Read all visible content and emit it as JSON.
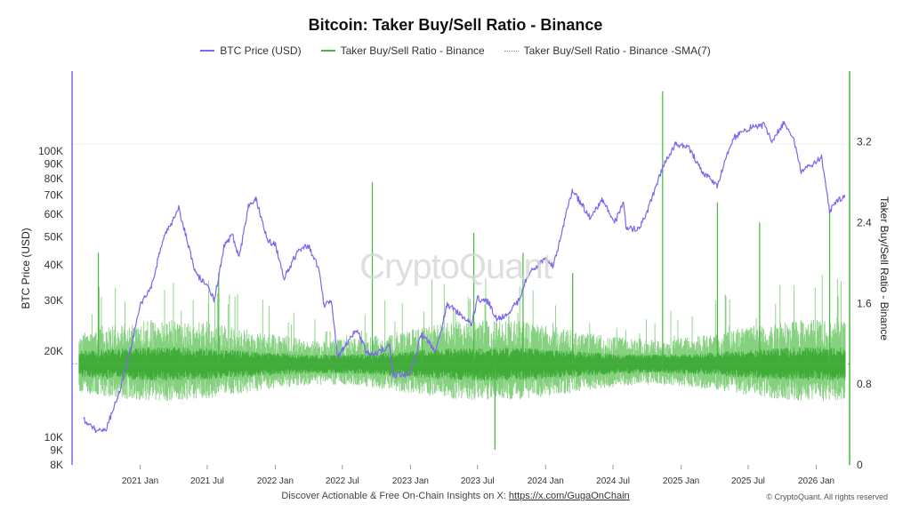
{
  "chart_data": {
    "type": "line",
    "title": "Bitcoin: Taker Buy/Sell Ratio - Binance",
    "ylabel_left": "BTC Price (USD)",
    "ylabel_right": "Taker Buy/Sell Ratio - Binance",
    "x_ticks": [
      "2021 Jan",
      "2021 Jul",
      "2022 Jan",
      "2022 Jul",
      "2023 Jan",
      "2023 Jul",
      "2024 Jan",
      "2024 Jul",
      "2025 Jan",
      "2025 Jul",
      "2026 Jan"
    ],
    "x_range": [
      "2020-07-01",
      "2026-04-01"
    ],
    "y_left": {
      "scale": "log",
      "range": [
        8000,
        190000
      ],
      "ticks": [
        "8K",
        "9K",
        "10K",
        "20K",
        "30K",
        "40K",
        "50K",
        "60K",
        "70K",
        "80K",
        "90K",
        "100K"
      ]
    },
    "y_right": {
      "scale": "linear",
      "range": [
        0,
        3.9
      ],
      "ticks": [
        "0",
        "0.8",
        "1.6",
        "2.4",
        "3.2"
      ]
    },
    "reference_line": 1.0,
    "series": [
      {
        "name": "BTC Price (USD)",
        "color": "#7b68ee",
        "axis": "left",
        "points": [
          [
            "2020-08-01",
            11500
          ],
          [
            "2020-09-01",
            10600
          ],
          [
            "2020-10-01",
            10700
          ],
          [
            "2020-11-01",
            13700
          ],
          [
            "2020-12-01",
            19000
          ],
          [
            "2021-01-01",
            29000
          ],
          [
            "2021-02-01",
            33500
          ],
          [
            "2021-03-01",
            48000
          ],
          [
            "2021-04-01",
            58000
          ],
          [
            "2021-04-15",
            63000
          ],
          [
            "2021-05-15",
            45000
          ],
          [
            "2021-06-01",
            37000
          ],
          [
            "2021-07-01",
            34000
          ],
          [
            "2021-07-20",
            30000
          ],
          [
            "2021-08-15",
            46000
          ],
          [
            "2021-09-07",
            51000
          ],
          [
            "2021-09-25",
            42000
          ],
          [
            "2021-10-20",
            64000
          ],
          [
            "2021-11-10",
            67500
          ],
          [
            "2021-12-10",
            49000
          ],
          [
            "2022-01-01",
            47000
          ],
          [
            "2022-01-25",
            36000
          ],
          [
            "2022-03-01",
            44000
          ],
          [
            "2022-03-30",
            47000
          ],
          [
            "2022-05-01",
            38000
          ],
          [
            "2022-05-12",
            29000
          ],
          [
            "2022-06-01",
            30000
          ],
          [
            "2022-06-18",
            19000
          ],
          [
            "2022-07-01",
            20000
          ],
          [
            "2022-08-10",
            24000
          ],
          [
            "2022-09-01",
            20000
          ],
          [
            "2022-10-01",
            19500
          ],
          [
            "2022-11-05",
            21000
          ],
          [
            "2022-11-15",
            16500
          ],
          [
            "2022-12-31",
            16600
          ],
          [
            "2023-01-31",
            23000
          ],
          [
            "2023-03-10",
            20000
          ],
          [
            "2023-04-10",
            29000
          ],
          [
            "2023-05-15",
            27000
          ],
          [
            "2023-06-15",
            25000
          ],
          [
            "2023-07-01",
            30500
          ],
          [
            "2023-08-01",
            29500
          ],
          [
            "2023-08-20",
            26000
          ],
          [
            "2023-09-15",
            26500
          ],
          [
            "2023-10-20",
            30000
          ],
          [
            "2023-11-15",
            37000
          ],
          [
            "2023-12-31",
            42500
          ],
          [
            "2024-01-22",
            39500
          ],
          [
            "2024-02-28",
            62000
          ],
          [
            "2024-03-14",
            73000
          ],
          [
            "2024-05-01",
            58000
          ],
          [
            "2024-06-01",
            68000
          ],
          [
            "2024-07-05",
            56000
          ],
          [
            "2024-07-30",
            66000
          ],
          [
            "2024-08-05",
            54000
          ],
          [
            "2024-09-06",
            53000
          ],
          [
            "2024-10-01",
            61000
          ],
          [
            "2024-11-12",
            88000
          ],
          [
            "2024-12-17",
            106000
          ],
          [
            "2025-01-20",
            104000
          ],
          [
            "2025-02-28",
            84000
          ],
          [
            "2025-04-08",
            76000
          ],
          [
            "2025-05-22",
            111000
          ],
          [
            "2025-07-14",
            122000
          ],
          [
            "2025-08-14",
            123000
          ],
          [
            "2025-09-01",
            108000
          ],
          [
            "2025-10-06",
            125000
          ],
          [
            "2025-11-01",
            110000
          ],
          [
            "2025-11-21",
            85000
          ],
          [
            "2025-12-15",
            88000
          ],
          [
            "2026-01-15",
            95000
          ],
          [
            "2026-02-06",
            62000
          ],
          [
            "2026-03-01",
            67000
          ],
          [
            "2026-03-20",
            70000
          ]
        ]
      },
      {
        "name": "Taker Buy/Sell Ratio - Binance",
        "color": "#44b83a",
        "axis": "right",
        "spikes": [
          [
            "2020-09-10",
            2.1
          ],
          [
            "2021-08-01",
            1.9
          ],
          [
            "2022-09-20",
            2.8
          ],
          [
            "2023-02-01",
            1.3
          ],
          [
            "2023-06-21",
            2.3
          ],
          [
            "2023-08-17",
            0.15
          ],
          [
            "2023-11-01",
            2.1
          ],
          [
            "2024-03-14",
            1.9
          ],
          [
            "2024-11-12",
            3.7
          ],
          [
            "2025-04-09",
            2.6
          ],
          [
            "2025-08-01",
            2.4
          ],
          [
            "2026-02-06",
            2.5
          ]
        ]
      },
      {
        "name": "Taker Buy/Sell Ratio - Binance -SMA(7)",
        "color": "#7a9a7a",
        "axis": "right",
        "style": "dotted"
      }
    ]
  },
  "footer": {
    "text": "Discover Actionable & Free On-Chain Insights on X: ",
    "link": "https://x.com/GugaOnChain"
  },
  "watermark": "CryptoQuant",
  "copyright": "© CryptoQuant. All rights reserved"
}
